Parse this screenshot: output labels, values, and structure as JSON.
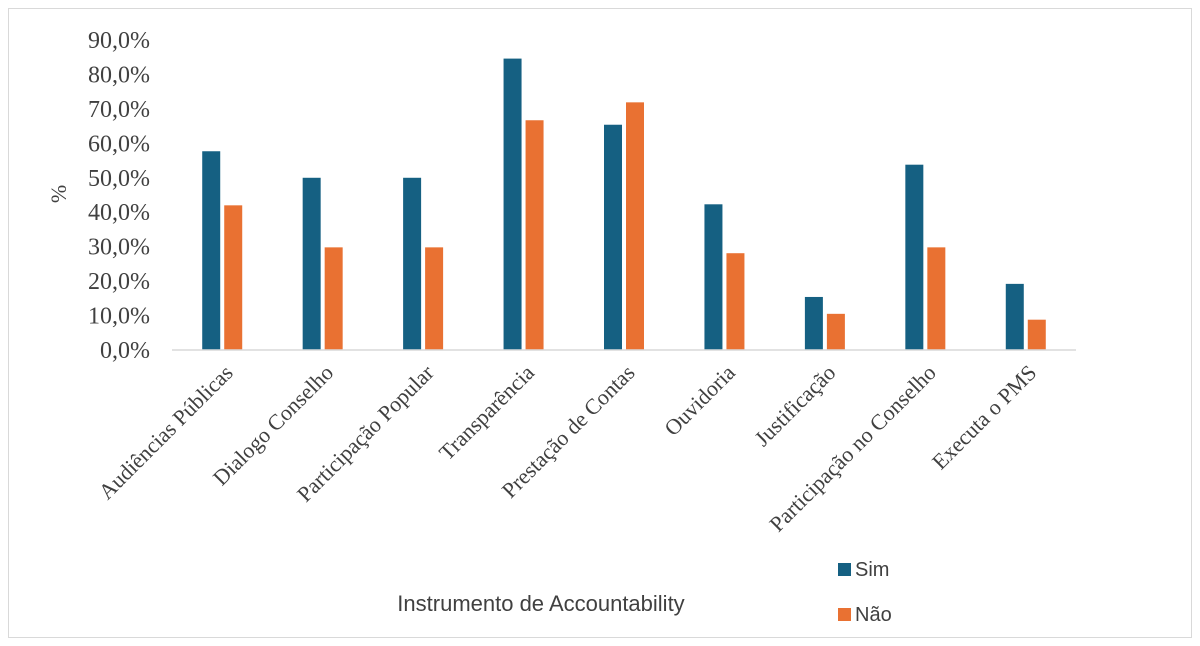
{
  "chart_data": {
    "type": "bar",
    "categories": [
      "Audiências Públicas",
      "Dialogo Conselho",
      "Participação Popular",
      "Transparência",
      "Prestação de Contas",
      "Ouvidoria",
      "Justificação",
      "Participação no Conselho",
      "Executa o PMS"
    ],
    "series": [
      {
        "name": "Sim",
        "color": "#156082",
        "values": [
          57.7,
          50.0,
          50.0,
          84.6,
          65.4,
          42.3,
          15.4,
          53.8,
          19.2
        ]
      },
      {
        "name": "Não",
        "color": "#E97132",
        "values": [
          42.0,
          29.8,
          29.8,
          66.7,
          71.9,
          28.1,
          10.5,
          29.8,
          8.8
        ]
      }
    ],
    "ylim": [
      0,
      90
    ],
    "yticks": [
      "0,0%",
      "10,0%",
      "20,0%",
      "30,0%",
      "40,0%",
      "50,0%",
      "60,0%",
      "70,0%",
      "80,0%",
      "90,0%"
    ],
    "xlabel": "Instrumento de Accountability",
    "ylabel": "%",
    "title": "",
    "grid": false,
    "legend": "bottom-right"
  }
}
